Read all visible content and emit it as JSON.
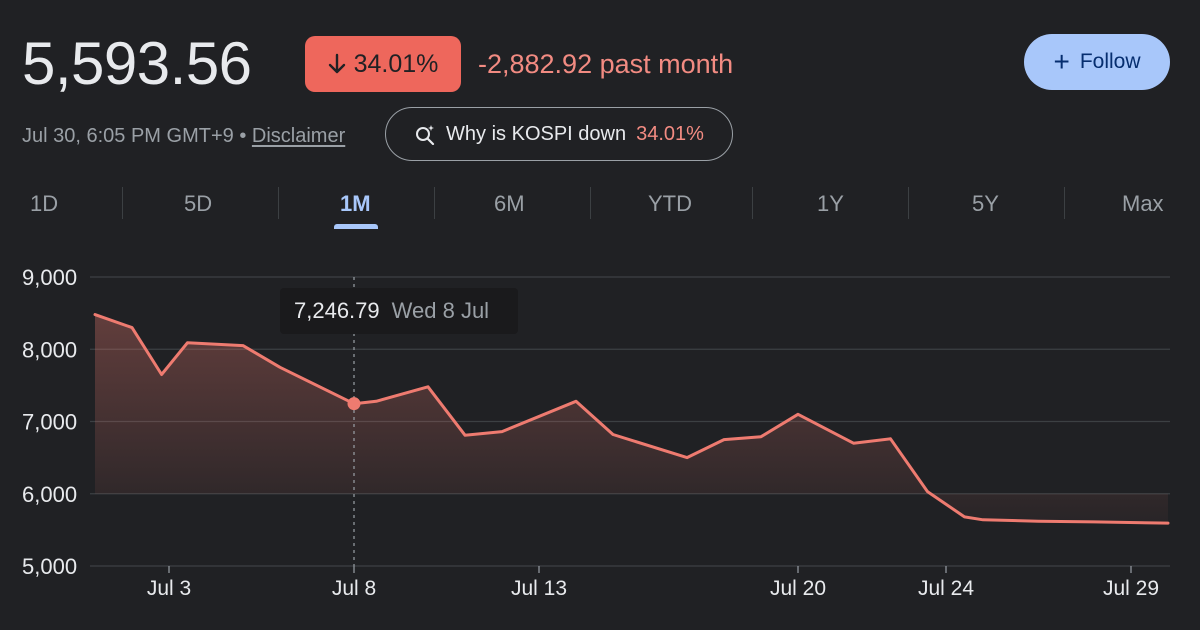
{
  "header": {
    "price": "5,593.56",
    "change_pct": "34.01%",
    "change_abs": "-2,882.92 past month",
    "follow_label": "Follow",
    "timestamp": "Jul 30, 6:05 PM GMT+9",
    "separator": "•",
    "disclaimer": "Disclaimer",
    "why_prefix": "Why is KOSPI down",
    "why_pct": "34.01%"
  },
  "tabs": [
    {
      "label": "1D",
      "active": false
    },
    {
      "label": "5D",
      "active": false
    },
    {
      "label": "1M",
      "active": true
    },
    {
      "label": "6M",
      "active": false
    },
    {
      "label": "YTD",
      "active": false
    },
    {
      "label": "1Y",
      "active": false
    },
    {
      "label": "5Y",
      "active": false
    },
    {
      "label": "Max",
      "active": false
    }
  ],
  "tooltip": {
    "value": "7,246.79",
    "date": "Wed 8 Jul"
  },
  "colors": {
    "background": "#202124",
    "line": "#ee7b70",
    "badge": "#ee675c",
    "negative_text": "#f28b82",
    "accent": "#a8c7fa",
    "grid": "#3c4043"
  },
  "chart_data": {
    "type": "area",
    "ylim": [
      5000,
      9000
    ],
    "y_ticks": [
      5000,
      6000,
      7000,
      8000,
      9000
    ],
    "y_tick_labels": [
      "9,000",
      "8,000",
      "7,000",
      "6,000",
      "5,000"
    ],
    "x_tick_labels": [
      "Jul 3",
      "Jul 8",
      "Jul 13",
      "Jul 20",
      "Jul 24",
      "Jul 29"
    ],
    "x_tick_days": [
      3,
      8,
      13,
      20,
      24,
      29
    ],
    "series": [
      {
        "x": [
          1,
          2,
          2.8,
          3.5,
          5,
          6,
          8,
          8.6,
          10,
          11,
          12,
          14,
          15,
          17,
          18,
          19,
          20,
          21.5,
          22.5,
          23.5,
          24.5,
          25,
          26.5,
          28,
          30
        ],
        "y": [
          8480,
          8300,
          7650,
          8090,
          8050,
          7750,
          7246.79,
          7280,
          7480,
          6810,
          6860,
          7280,
          6820,
          6500,
          6750,
          6790,
          7100,
          6700,
          6760,
          6030,
          5680,
          5640,
          5620,
          5610,
          5593.56
        ]
      }
    ],
    "highlight": {
      "x": 8,
      "y": 7246.79
    }
  }
}
